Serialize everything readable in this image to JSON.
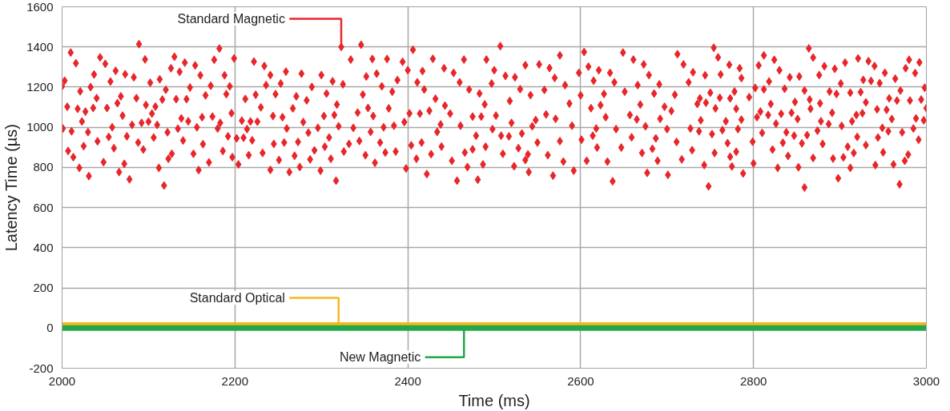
{
  "chart_data": {
    "type": "scatter",
    "xlabel": "Time (ms)",
    "ylabel": "Latency Time (µs)",
    "xlim": [
      2000,
      3000
    ],
    "xticks": [
      2000,
      2200,
      2400,
      2600,
      2800,
      3000
    ],
    "ylim": [
      -200,
      1600
    ],
    "yticks": [
      -200,
      0,
      200,
      400,
      600,
      800,
      1000,
      1200,
      1400,
      1600
    ],
    "grid": true,
    "legend": false,
    "marker": "diamond",
    "series": [
      {
        "name": "Standard Magnetic",
        "color": "#e8262a",
        "x": [
          2089,
          2010,
          2016,
          2044,
          2050,
          2096,
          2130,
          2142,
          2154,
          2182,
          2176,
          2199,
          2003,
          2000,
          2037,
          2062,
          2073,
          2083,
          2056,
          2102,
          2113,
          2126,
          2136,
          2160,
          2188,
          2148,
          2172,
          2194,
          2021,
          2033,
          2040,
          2068,
          2086,
          2120,
          2132,
          2144,
          2166,
          2190,
          2006,
          2018,
          2027,
          2036,
          2052,
          2064,
          2097,
          2108,
          2116,
          2104,
          2070,
          2023,
          2081,
          2092,
          2100,
          2110,
          2138,
          2146,
          2162,
          2174,
          2183,
          2196,
          2001,
          2011,
          2030,
          2058,
          2134,
          2156,
          2180,
          2122,
          2054,
          2075,
          2106,
          2140,
          2192,
          2041,
          2088,
          2007,
          2025,
          2060,
          2094,
          2127,
          2152,
          2163,
          2186,
          2013,
          2123,
          2048,
          2072,
          2170,
          2197,
          2020,
          2066,
          2112,
          2158,
          2204,
          2031,
          2078,
          2118,
          2212,
          2222,
          2234,
          2241,
          2224,
          2230,
          2236,
          2208,
          2218,
          2226,
          2214,
          2202,
          2210,
          2220,
          2216,
          2232,
          2323,
          2346,
          2406,
          2334,
          2359,
          2376,
          2394,
          2429,
          2465,
          2491,
          2259,
          2277,
          2300,
          2400,
          2417,
          2442,
          2453,
          2313,
          2352,
          2364,
          2388,
          2411,
          2253,
          2289,
          2325,
          2370,
          2460,
          2247,
          2271,
          2306,
          2348,
          2382,
          2419,
          2432,
          2471,
          2483,
          2283,
          2318,
          2267,
          2354,
          2378,
          2443,
          2489,
          2244,
          2255,
          2303,
          2315,
          2342,
          2360,
          2402,
          2414,
          2425,
          2449,
          2485,
          2279,
          2396,
          2438,
          2475,
          2260,
          2296,
          2320,
          2337,
          2372,
          2384,
          2461,
          2357,
          2434,
          2245,
          2257,
          2273,
          2285,
          2309,
          2344,
          2368,
          2404,
          2416,
          2479,
          2304,
          2292,
          2332,
          2374,
          2386,
          2439,
          2466,
          2475,
          2490,
          2251,
          2269,
          2287,
          2311,
          2326,
          2351,
          2427,
          2410,
          2451,
          2241,
          2263,
          2275,
          2299,
          2362,
          2398,
          2469,
          2487,
          2317,
          2422,
          2457,
          2481,
          2507,
          2500,
          2576,
          2604,
          2649,
          2712,
          2536,
          2552,
          2564,
          2609,
          2621,
          2661,
          2673,
          2719,
          2513,
          2524,
          2570,
          2598,
          2634,
          2679,
          2730,
          2497,
          2530,
          2558,
          2582,
          2615,
          2639,
          2666,
          2691,
          2725,
          2542,
          2600,
          2627,
          2651,
          2685,
          2709,
          2518,
          2587,
          2623,
          2669,
          2697,
          2502,
          2560,
          2612,
          2657,
          2705,
          2520,
          2548,
          2571,
          2629,
          2665,
          2692,
          2498,
          2544,
          2590,
          2618,
          2641,
          2675,
          2700,
          2727,
          2508,
          2532,
          2614,
          2659,
          2517,
          2550,
          2576,
          2601,
          2619,
          2687,
          2711,
          2510,
          2528,
          2539,
          2562,
          2647,
          2683,
          2729,
          2523,
          2536,
          2580,
          2607,
          2631,
          2671,
          2689,
          2717,
          2540,
          2568,
          2592,
          2637,
          2677,
          2701,
          2754,
          2759,
          2864,
          2812,
          2824,
          2869,
          2921,
          2933,
          2980,
          2992,
          2772,
          2784,
          2806,
          2882,
          2894,
          2906,
          2940,
          2976,
          2744,
          2762,
          2786,
          2830,
          2842,
          2853,
          2876,
          2952,
          2964,
          2987,
          2818,
          2927,
          2936,
          2946,
          2901,
          2998,
          2802,
          2812,
          2836,
          2859,
          2888,
          2896,
          2912,
          2924,
          2970,
          2750,
          2778,
          2735,
          2738,
          2745,
          2761,
          2773,
          2795,
          2865,
          2877,
          2930,
          2957,
          2966,
          2981,
          2994,
          2756,
          2780,
          2820,
          2848,
          2866,
          2943,
          2954,
          3000,
          2808,
          2817,
          2832,
          2844,
          2891,
          2919,
          2926,
          2739,
          2768,
          2786,
          2804,
          2851,
          2878,
          2887,
          2902,
          2914,
          2960,
          2988,
          2997,
          2826,
          2737,
          2752,
          2764,
          2782,
          2810,
          2838,
          2874,
          2949,
          2956,
          2972,
          2985,
          2847,
          2862,
          2920,
          2944,
          2770,
          2799,
          2834,
          2856,
          2880,
          2909,
          2930,
          2991,
          2755,
          2780,
          2773,
          2822,
          2840,
          2916,
          2950,
          2979,
          2869,
          2892,
          2904,
          2975,
          2743,
          2775,
          2800,
          2788,
          2828,
          2852,
          2912,
          2941,
          2962,
          2748,
          2859,
          2898,
          2969
        ],
        "values": [
          1414,
          1372,
          1319,
          1348,
          1316,
          1338,
          1351,
          1322,
          1308,
          1392,
          1336,
          1343,
          1232,
          1204,
          1263,
          1281,
          1264,
          1249,
          1228,
          1222,
          1239,
          1294,
          1276,
          1259,
          1259,
          1198,
          1207,
          1204,
          1179,
          1200,
          1145,
          1154,
          1145,
          1187,
          1140,
          1140,
          1159,
          1165,
          1102,
          1092,
          1078,
          1096,
          1096,
          1120,
          1111,
          1103,
          1138,
          1068,
          1058,
          1029,
          1012,
          1022,
          1028,
          1012,
          1044,
          1030,
          1050,
          1053,
          1022,
          1070,
          994,
          980,
          976,
          1000,
          993,
          1000,
          994,
          975,
          952,
          955,
          949,
          934,
          955,
          930,
          924,
          882,
          906,
          896,
          889,
          868,
          868,
          916,
          882,
          851,
          843,
          826,
          818,
          825,
          851,
          798,
          777,
          798,
          787,
          815,
          757,
          741,
          710,
          1141,
          1327,
          1305,
          1260,
          1162,
          1099,
          1210,
          1033,
          1029,
          1028,
          991,
          945,
          948,
          935,
          861,
          872,
          1400,
          1411,
          1386,
          1337,
          1340,
          1340,
          1326,
          1341,
          1337,
          1337,
          1277,
          1267,
          1260,
          1284,
          1280,
          1294,
          1271,
          1229,
          1253,
          1267,
          1235,
          1224,
          1218,
          1201,
          1214,
          1204,
          1224,
          1165,
          1154,
          1168,
          1163,
          1177,
          1188,
          1142,
          1188,
          1168,
          1134,
          1113,
          1094,
          1096,
          1094,
          1108,
          1114,
          1056,
          1050,
          1056,
          1061,
          1073,
          1056,
          1069,
          1068,
          1082,
          1068,
          1053,
          1026,
          1026,
          1014,
          1053,
          994,
          997,
          1005,
          997,
          1000,
          1008,
          1008,
          977,
          977,
          917,
          924,
          927,
          973,
          949,
          932,
          924,
          910,
          924,
          958,
          903,
          885,
          917,
          874,
          879,
          904,
          874,
          890,
          903,
          837,
          858,
          840,
          843,
          879,
          861,
          866,
          843,
          833,
          788,
          777,
          802,
          784,
          823,
          795,
          802,
          815,
          734,
          767,
          734,
          739,
          1404,
          1284,
          1358,
          1375,
          1372,
          1364,
          1309,
          1313,
          1295,
          1302,
          1284,
          1337,
          1313,
          1313,
          1256,
          1249,
          1246,
          1271,
          1271,
          1260,
          1274,
          1218,
          1190,
          1186,
          1210,
          1232,
          1224,
          1210,
          1214,
          1224,
          1160,
          1159,
          1166,
          1177,
          1168,
          1162,
          1131,
          1118,
          1110,
          1113,
          1102,
          1058,
          1064,
          1095,
          1061,
          1081,
          1022,
          1036,
          1042,
          1050,
          1039,
          1042,
          991,
          1005,
          1008,
          994,
          991,
          1005,
          991,
          994,
          958,
          969,
          958,
          950,
          955,
          924,
          931,
          938,
          899,
          945,
          927,
          868,
          896,
          865,
          861,
          899,
          893,
          886,
          806,
          837,
          829,
          833,
          829,
          872,
          833,
          840,
          777,
          759,
          784,
          731,
          773,
          763,
          1396,
          1348,
          1393,
          1358,
          1336,
          1347,
          1343,
          1329,
          1336,
          1323,
          1311,
          1294,
          1308,
          1304,
          1291,
          1322,
          1305,
          1294,
          1259,
          1263,
          1245,
          1284,
          1249,
          1253,
          1260,
          1271,
          1242,
          1270,
          1228,
          1236,
          1231,
          1220,
          1218,
          1197,
          1196,
          1189,
          1192,
          1183,
          1178,
          1166,
          1172,
          1175,
          1183,
          1172,
          1178,
          1116,
          1144,
          1122,
          1147,
          1144,
          1150,
          1138,
          1119,
          1124,
          1144,
          1133,
          1133,
          1138,
          1094,
          1092,
          1116,
          1126,
          1092,
          1089,
          1087,
          1095,
          1078,
          1061,
          1067,
          1072,
          1072,
          1061,
          1070,
          1035,
          1030,
          1038,
          1050,
          1041,
          1030,
          1016,
          1007,
          1030,
          1041,
          1044,
          1035,
          1018,
          980,
          966,
          986,
          991,
          972,
          975,
          983,
          997,
          980,
          975,
          994,
          958,
          961,
          952,
          949,
          921,
          928,
          923,
          920,
          917,
          903,
          911,
          938,
          872,
          878,
          853,
          889,
          857,
          872,
          875,
          864,
          847,
          844,
          850,
          833,
          812,
          805,
          820,
          770,
          798,
          801,
          798,
          812,
          815,
          706,
          700,
          746,
          716
        ]
      },
      {
        "name": "Standard Optical",
        "color": "#f5b820",
        "type": "line",
        "marker": "none",
        "x": [
          2000,
          2100,
          2200,
          2300,
          2400,
          2500,
          2600,
          2700,
          2800,
          2900,
          3000
        ],
        "values": [
          15,
          15,
          15,
          15,
          15,
          15,
          15,
          15,
          15,
          15,
          15
        ]
      },
      {
        "name": "New Magnetic",
        "color": "#22a84a",
        "type": "line",
        "marker": "none",
        "x": [
          2000,
          2100,
          2200,
          2300,
          2400,
          2500,
          2600,
          2700,
          2800,
          2900,
          3000
        ],
        "values": [
          0,
          0,
          0,
          0,
          0,
          0,
          0,
          0,
          0,
          0,
          0
        ]
      }
    ]
  }
}
